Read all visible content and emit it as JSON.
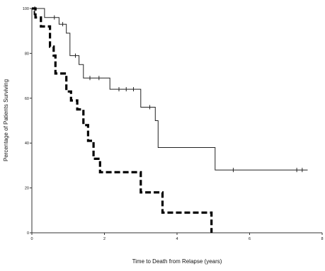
{
  "chart_data": {
    "type": "line",
    "title": "",
    "xlabel": "Time to Death from Relapse (years)",
    "ylabel": "Percentage of Patients Surviving",
    "xlim": [
      0,
      8
    ],
    "ylim": [
      0,
      100
    ],
    "xticks": [
      0,
      2,
      4,
      6,
      8
    ],
    "yticks": [
      0,
      20,
      40,
      60,
      80,
      100
    ],
    "grid": false,
    "legend": "none",
    "series": [
      {
        "style": "solid",
        "color": "#222222",
        "steps": [
          [
            0,
            100
          ],
          [
            0.35,
            100
          ],
          [
            0.35,
            96
          ],
          [
            0.75,
            96
          ],
          [
            0.75,
            93
          ],
          [
            0.95,
            93
          ],
          [
            0.95,
            89
          ],
          [
            1.05,
            89
          ],
          [
            1.05,
            79
          ],
          [
            1.3,
            79
          ],
          [
            1.3,
            75
          ],
          [
            1.42,
            75
          ],
          [
            1.42,
            69
          ],
          [
            2.15,
            69
          ],
          [
            2.15,
            64
          ],
          [
            3.0,
            64
          ],
          [
            3.0,
            56
          ],
          [
            3.4,
            56
          ],
          [
            3.4,
            50
          ],
          [
            3.48,
            50
          ],
          [
            3.48,
            38
          ],
          [
            5.05,
            38
          ],
          [
            5.05,
            28
          ],
          [
            7.6,
            28
          ]
        ],
        "censored": [
          [
            0.08,
            100
          ],
          [
            0.62,
            96
          ],
          [
            0.85,
            93
          ],
          [
            1.2,
            79
          ],
          [
            1.6,
            69
          ],
          [
            1.85,
            69
          ],
          [
            2.4,
            64
          ],
          [
            2.6,
            64
          ],
          [
            2.8,
            64
          ],
          [
            3.25,
            56
          ],
          [
            5.55,
            28
          ],
          [
            7.3,
            28
          ],
          [
            7.45,
            28
          ]
        ]
      },
      {
        "style": "dashed",
        "color": "#000000",
        "steps": [
          [
            0,
            100
          ],
          [
            0.1,
            100
          ],
          [
            0.1,
            96
          ],
          [
            0.25,
            96
          ],
          [
            0.25,
            92
          ],
          [
            0.5,
            92
          ],
          [
            0.5,
            83
          ],
          [
            0.6,
            83
          ],
          [
            0.6,
            79
          ],
          [
            0.65,
            79
          ],
          [
            0.65,
            71
          ],
          [
            0.95,
            71
          ],
          [
            0.95,
            63
          ],
          [
            1.08,
            63
          ],
          [
            1.08,
            59
          ],
          [
            1.25,
            59
          ],
          [
            1.25,
            55
          ],
          [
            1.42,
            55
          ],
          [
            1.42,
            48
          ],
          [
            1.55,
            48
          ],
          [
            1.55,
            41
          ],
          [
            1.7,
            41
          ],
          [
            1.7,
            33
          ],
          [
            1.88,
            33
          ],
          [
            1.88,
            27
          ],
          [
            3.0,
            27
          ],
          [
            3.0,
            18
          ],
          [
            3.6,
            18
          ],
          [
            3.6,
            9
          ],
          [
            4.95,
            9
          ],
          [
            4.95,
            0
          ]
        ],
        "censored": [
          [
            0.07,
            98
          ]
        ]
      }
    ]
  }
}
